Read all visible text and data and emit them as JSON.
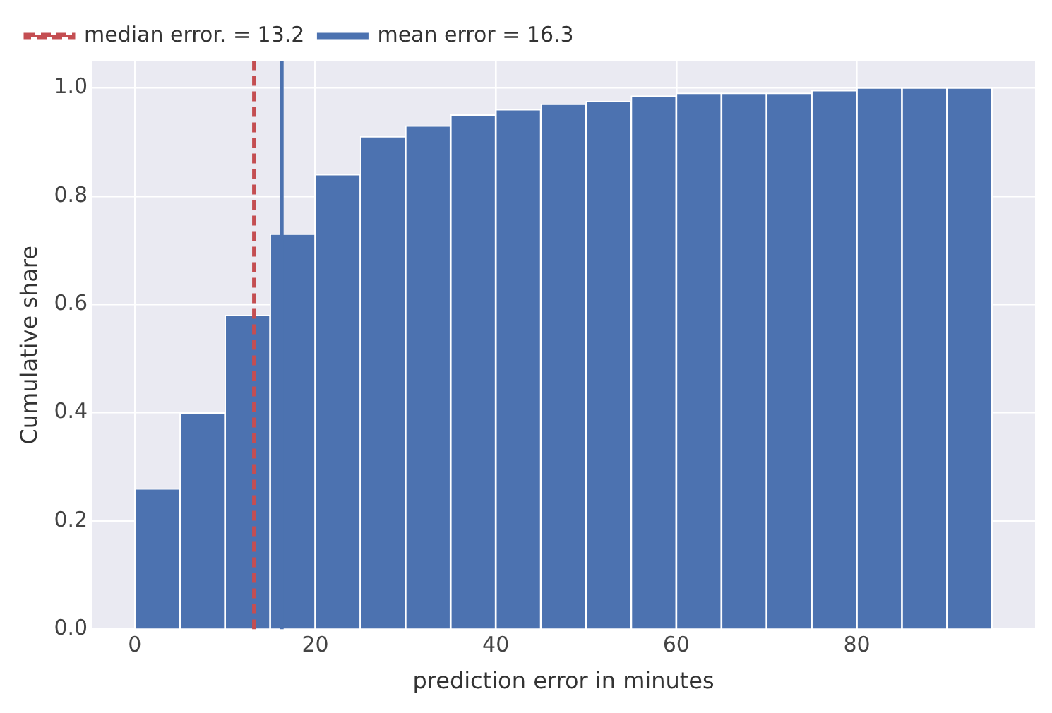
{
  "chart_data": {
    "type": "histogram",
    "xlabel": "prediction error in minutes",
    "ylabel": "Cumulative share",
    "bins": [
      0,
      5,
      10,
      15,
      20,
      25,
      30,
      35,
      40,
      45,
      50,
      55,
      60,
      65,
      70,
      75,
      80,
      85,
      90,
      95
    ],
    "values": [
      0.26,
      0.4,
      0.58,
      0.73,
      0.84,
      0.91,
      0.93,
      0.95,
      0.96,
      0.97,
      0.975,
      0.985,
      0.99,
      0.99,
      0.99,
      0.995,
      1,
      1,
      1
    ],
    "color": "#4c72b0",
    "xlim": [
      -4.75,
      99.75
    ],
    "xticks": [
      0,
      20,
      40,
      60,
      80
    ],
    "ylim": [
      0,
      1.05
    ],
    "yticks": [
      {
        "value": 0,
        "label": "0.0"
      },
      {
        "value": 0.2,
        "label": "0.2"
      },
      {
        "value": 0.4,
        "label": "0.4"
      },
      {
        "value": 0.6,
        "label": "0.6"
      },
      {
        "value": 0.8,
        "label": "0.8"
      },
      {
        "value": 1,
        "label": "1.0"
      }
    ],
    "ref_lines": [
      {
        "axis": "x",
        "value": 13.2,
        "label": "median error. = 13.2",
        "color": "#c44e52",
        "line_style": "dashed"
      },
      {
        "axis": "x",
        "value": 16.3,
        "label": "mean error = 16.3",
        "color": "#4c72b0",
        "line_style": "solid"
      }
    ],
    "grid": true,
    "legend": "top left"
  }
}
